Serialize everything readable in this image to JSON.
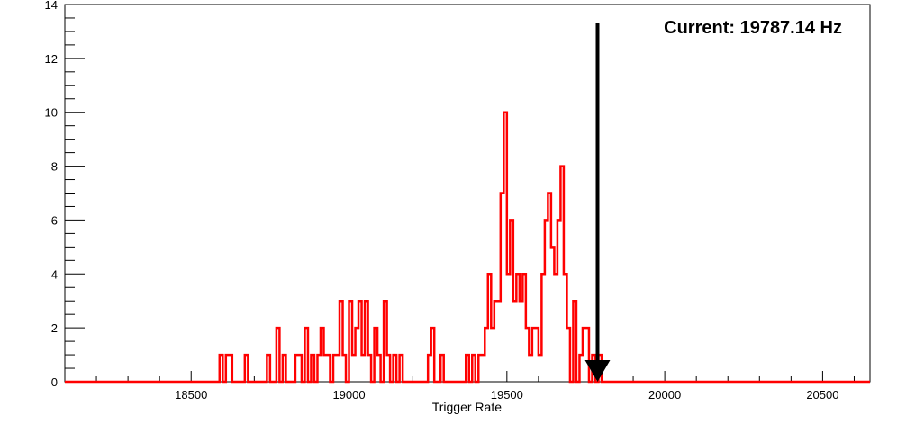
{
  "chart_data": {
    "type": "histogram",
    "title": "",
    "xlabel": "Trigger Rate",
    "ylabel": "",
    "xlim": [
      18100,
      20650
    ],
    "ylim": [
      0,
      14
    ],
    "x_ticks": [
      18500,
      19000,
      19500,
      20000,
      20500
    ],
    "y_ticks": [
      0,
      2,
      4,
      6,
      8,
      10,
      12,
      14
    ],
    "x_tick_labels": [
      "18500",
      "19000",
      "19500",
      "20000",
      "20500"
    ],
    "y_tick_labels": [
      "0",
      "2",
      "4",
      "6",
      "8",
      "10",
      "12",
      "14"
    ],
    "grid": false,
    "bin_width": 10,
    "bins": [
      [
        18595,
        1
      ],
      [
        18605,
        0
      ],
      [
        18615,
        1
      ],
      [
        18625,
        1
      ],
      [
        18635,
        0
      ],
      [
        18645,
        0
      ],
      [
        18655,
        0
      ],
      [
        18665,
        0
      ],
      [
        18675,
        1
      ],
      [
        18685,
        0
      ],
      [
        18745,
        1
      ],
      [
        18755,
        0
      ],
      [
        18765,
        0
      ],
      [
        18775,
        2
      ],
      [
        18785,
        0
      ],
      [
        18795,
        1
      ],
      [
        18805,
        0
      ],
      [
        18815,
        0
      ],
      [
        18825,
        0
      ],
      [
        18835,
        1
      ],
      [
        18845,
        1
      ],
      [
        18855,
        0
      ],
      [
        18865,
        2
      ],
      [
        18875,
        0
      ],
      [
        18885,
        1
      ],
      [
        18895,
        0
      ],
      [
        18905,
        1
      ],
      [
        18915,
        2
      ],
      [
        18925,
        1
      ],
      [
        18935,
        1
      ],
      [
        18945,
        0
      ],
      [
        18955,
        1
      ],
      [
        18965,
        1
      ],
      [
        18975,
        3
      ],
      [
        18985,
        1
      ],
      [
        18995,
        0
      ],
      [
        19005,
        3
      ],
      [
        19015,
        1
      ],
      [
        19025,
        2
      ],
      [
        19035,
        3
      ],
      [
        19045,
        1
      ],
      [
        19055,
        3
      ],
      [
        19065,
        1
      ],
      [
        19075,
        0
      ],
      [
        19085,
        2
      ],
      [
        19095,
        1
      ],
      [
        19105,
        0
      ],
      [
        19115,
        3
      ],
      [
        19125,
        1
      ],
      [
        19135,
        0
      ],
      [
        19145,
        1
      ],
      [
        19155,
        0
      ],
      [
        19165,
        1
      ],
      [
        19175,
        0
      ],
      [
        19255,
        1
      ],
      [
        19265,
        2
      ],
      [
        19275,
        0
      ],
      [
        19285,
        0
      ],
      [
        19295,
        1
      ],
      [
        19305,
        0
      ],
      [
        19375,
        1
      ],
      [
        19385,
        0
      ],
      [
        19395,
        1
      ],
      [
        19405,
        0
      ],
      [
        19415,
        1
      ],
      [
        19425,
        1
      ],
      [
        19435,
        2
      ],
      [
        19445,
        4
      ],
      [
        19455,
        2
      ],
      [
        19465,
        3
      ],
      [
        19475,
        3
      ],
      [
        19485,
        7
      ],
      [
        19495,
        10
      ],
      [
        19505,
        4
      ],
      [
        19515,
        6
      ],
      [
        19525,
        3
      ],
      [
        19535,
        4
      ],
      [
        19545,
        3
      ],
      [
        19555,
        4
      ],
      [
        19565,
        2
      ],
      [
        19575,
        1
      ],
      [
        19585,
        2
      ],
      [
        19595,
        2
      ],
      [
        19605,
        1
      ],
      [
        19615,
        4
      ],
      [
        19625,
        6
      ],
      [
        19635,
        7
      ],
      [
        19645,
        5
      ],
      [
        19655,
        4
      ],
      [
        19665,
        6
      ],
      [
        19675,
        8
      ],
      [
        19685,
        4
      ],
      [
        19695,
        2
      ],
      [
        19705,
        0
      ],
      [
        19715,
        3
      ],
      [
        19725,
        0
      ],
      [
        19735,
        1
      ],
      [
        19745,
        2
      ],
      [
        19755,
        2
      ],
      [
        19765,
        0
      ],
      [
        19775,
        1
      ],
      [
        19785,
        0
      ],
      [
        19795,
        1
      ],
      [
        19805,
        0
      ]
    ],
    "series": [
      {
        "color": "#ff0000"
      }
    ],
    "marker": {
      "type": "arrow-down",
      "x": 19787.14,
      "y_from": 13.3,
      "y_to": 0,
      "color": "#000000"
    },
    "annotation": "Current: 19787.14 Hz"
  }
}
